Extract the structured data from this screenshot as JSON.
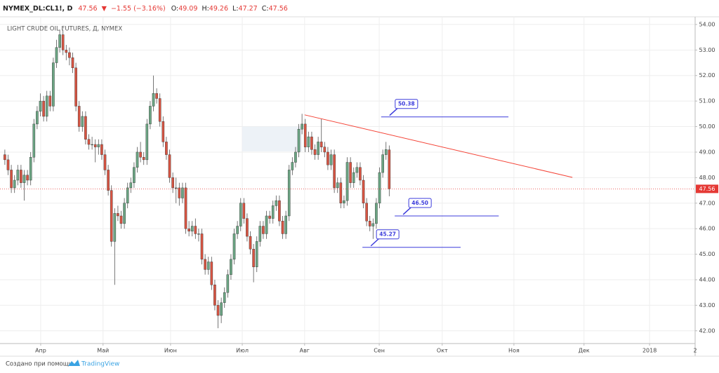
{
  "header": {
    "symbol": "NYMEX_DL:CL1!, D",
    "price": "47.56",
    "arrow": "▼",
    "change": "−1.55 (−3.16%)",
    "o_label": "O:",
    "o": "49.09",
    "h_label": "H:",
    "h": "49.26",
    "l_label": "L:",
    "l": "47.27",
    "c_label": "C:",
    "c": "47.56"
  },
  "chart_data": {
    "type": "candlestick",
    "subtitle": "LIGHT CRUDE OIL FUTURES, Д, NYMEX",
    "up_color": "#6ba583",
    "down_color": "#d75442",
    "candles": {
      "open": [
        48.9,
        48.7,
        48.3,
        47.6,
        47.9,
        48.3,
        47.8,
        48.1,
        47.9,
        48.8,
        50.1,
        50.6,
        51.0,
        50.4,
        51.2,
        50.8,
        52.5,
        53.1,
        53.6,
        53.0,
        52.9,
        52.7,
        52.3,
        50.8,
        50.0,
        50.4,
        49.5,
        49.3,
        49.3,
        49.2,
        49.3,
        48.9,
        48.3,
        47.5,
        45.5,
        46.6,
        46.5,
        46.2,
        47.0,
        47.6,
        47.8,
        48.4,
        49.0,
        48.8,
        48.7,
        50.1,
        50.8,
        51.3,
        51.1,
        50.2,
        49.4,
        48.9,
        48.0,
        47.6,
        47.6,
        47.2,
        47.6,
        46.0,
        45.9,
        46.1,
        45.8,
        45.8,
        44.8,
        44.4,
        44.7,
        43.8,
        43.0,
        42.6,
        43.1,
        43.5,
        44.2,
        44.8,
        45.8,
        46.1,
        47.0,
        46.4,
        45.7,
        45.2,
        44.5,
        45.5,
        46.1,
        45.8,
        46.5,
        46.4,
        46.9,
        47.1,
        46.3,
        45.8,
        46.5,
        48.3,
        48.6,
        49.0,
        49.9,
        50.1,
        49.2,
        49.6,
        49.1,
        48.9,
        49.4,
        49.2,
        49.0,
        48.5,
        48.9,
        47.6,
        47.8,
        47.0,
        47.1,
        48.6,
        47.8,
        48.2,
        48.4,
        47.9,
        47.0,
        46.3,
        46.1,
        46.2,
        47.0,
        48.2,
        48.9,
        49.09
      ],
      "high": [
        49.1,
        48.9,
        48.5,
        48.1,
        48.5,
        48.5,
        48.3,
        48.3,
        49.0,
        50.3,
        50.8,
        51.3,
        51.2,
        51.4,
        51.4,
        52.7,
        53.4,
        53.8,
        53.8,
        53.2,
        53.1,
        52.9,
        52.5,
        51.0,
        50.6,
        50.6,
        49.7,
        49.6,
        49.5,
        49.5,
        49.5,
        49.1,
        48.5,
        47.7,
        46.8,
        46.9,
        46.7,
        47.2,
        47.8,
        48.0,
        48.6,
        49.2,
        49.4,
        49.0,
        50.3,
        51.0,
        52.0,
        51.5,
        51.3,
        50.4,
        49.6,
        49.1,
        48.2,
        48.0,
        47.8,
        47.8,
        47.8,
        46.3,
        46.3,
        46.4,
        46.0,
        46.0,
        45.0,
        44.9,
        44.9,
        44.0,
        43.2,
        43.3,
        43.7,
        44.4,
        45.0,
        46.0,
        46.3,
        47.2,
        47.2,
        46.6,
        45.9,
        45.4,
        45.7,
        46.3,
        46.3,
        46.7,
        46.7,
        47.1,
        47.3,
        47.3,
        46.5,
        46.7,
        48.5,
        48.8,
        49.2,
        50.1,
        50.5,
        50.3,
        49.8,
        49.8,
        49.3,
        49.6,
        50.3,
        49.4,
        49.2,
        49.1,
        49.1,
        48.0,
        48.0,
        47.3,
        48.8,
        48.8,
        48.4,
        48.6,
        48.6,
        48.1,
        47.2,
        46.5,
        46.4,
        47.2,
        48.4,
        49.1,
        49.4,
        49.26
      ],
      "low": [
        48.5,
        48.1,
        47.4,
        47.4,
        47.7,
        47.6,
        47.1,
        47.7,
        47.7,
        48.6,
        49.9,
        50.4,
        50.2,
        50.2,
        50.6,
        50.6,
        52.3,
        52.9,
        52.8,
        52.6,
        52.4,
        52.1,
        50.6,
        49.8,
        49.8,
        49.3,
        49.1,
        49.1,
        48.6,
        48.9,
        48.7,
        48.1,
        47.3,
        45.3,
        43.8,
        46.3,
        46.0,
        46.0,
        46.8,
        47.4,
        47.6,
        48.2,
        48.6,
        48.5,
        48.5,
        49.9,
        50.6,
        50.9,
        50.0,
        49.2,
        48.7,
        47.8,
        47.4,
        47.0,
        46.9,
        47.0,
        45.8,
        45.7,
        45.7,
        45.6,
        45.5,
        44.6,
        44.2,
        44.2,
        43.6,
        42.8,
        42.1,
        42.3,
        42.9,
        43.3,
        44.0,
        44.6,
        45.6,
        45.9,
        46.2,
        45.5,
        45.0,
        43.9,
        44.3,
        45.3,
        45.6,
        45.6,
        46.2,
        46.2,
        46.7,
        46.1,
        45.6,
        45.6,
        46.3,
        48.1,
        48.4,
        48.8,
        49.7,
        49.0,
        49.0,
        48.9,
        48.7,
        48.7,
        49.0,
        48.8,
        48.3,
        48.3,
        47.4,
        47.4,
        46.8,
        46.8,
        46.9,
        47.6,
        47.6,
        48.0,
        47.7,
        46.8,
        46.1,
        45.9,
        45.6,
        46.0,
        46.8,
        48.0,
        48.7,
        47.27
      ],
      "close": [
        48.7,
        48.3,
        47.6,
        47.9,
        48.3,
        47.8,
        48.1,
        47.9,
        48.8,
        50.1,
        50.6,
        51.0,
        50.4,
        51.2,
        50.8,
        52.5,
        53.1,
        53.6,
        53.0,
        52.9,
        52.7,
        52.3,
        50.8,
        50.0,
        50.4,
        49.5,
        49.3,
        49.3,
        49.2,
        49.3,
        48.9,
        48.3,
        47.5,
        45.5,
        46.6,
        46.5,
        46.2,
        47.0,
        47.6,
        47.8,
        48.4,
        49.0,
        48.8,
        48.7,
        50.1,
        50.8,
        51.3,
        51.1,
        50.2,
        49.4,
        48.9,
        48.0,
        47.6,
        47.6,
        47.2,
        47.6,
        46.0,
        45.9,
        46.1,
        45.8,
        45.8,
        44.8,
        44.4,
        44.7,
        43.8,
        43.0,
        42.6,
        43.1,
        43.5,
        44.2,
        44.8,
        45.8,
        46.1,
        47.0,
        46.4,
        45.7,
        45.2,
        44.5,
        45.5,
        46.1,
        45.8,
        46.5,
        46.4,
        46.9,
        47.1,
        46.3,
        45.8,
        46.5,
        48.3,
        48.6,
        49.0,
        49.9,
        50.1,
        49.2,
        49.6,
        49.1,
        48.9,
        49.4,
        49.2,
        49.0,
        48.5,
        48.9,
        47.6,
        47.8,
        47.0,
        47.1,
        48.6,
        47.8,
        48.2,
        48.4,
        47.9,
        47.0,
        46.3,
        46.1,
        46.2,
        47.0,
        48.2,
        48.9,
        49.1,
        47.56
      ]
    },
    "last_price": 47.56,
    "last_price_color": "#e53935",
    "xlim": [
      -1.5,
      213.7
    ],
    "xticks": [
      {
        "value": 11.1,
        "label": "Апр"
      },
      {
        "value": 30.4,
        "label": "Май"
      },
      {
        "value": 51.3,
        "label": "Июн"
      },
      {
        "value": 73.5,
        "label": "Июл"
      },
      {
        "value": 92.8,
        "label": "Авг"
      },
      {
        "value": 115.9,
        "label": "Сен"
      },
      {
        "value": 135.4,
        "label": "Окт"
      },
      {
        "value": 157.6,
        "label": "Ноя"
      },
      {
        "value": 179.3,
        "label": "Дек"
      },
      {
        "value": 199.6,
        "label": "2018"
      },
      {
        "value": 213.7,
        "label": "2"
      }
    ],
    "ylim": [
      41.5,
      54.3
    ],
    "yticks": [
      {
        "value": 42,
        "label": "42.00"
      },
      {
        "value": 43,
        "label": "43.00"
      },
      {
        "value": 44,
        "label": "44.00"
      },
      {
        "value": 45,
        "label": "45.00"
      },
      {
        "value": 46,
        "label": "46.00"
      },
      {
        "value": 47,
        "label": "47.00"
      },
      {
        "value": 48,
        "label": "48.00"
      },
      {
        "value": 49,
        "label": "49.00"
      },
      {
        "value": 50,
        "label": "50.00"
      },
      {
        "value": 51,
        "label": "51.00"
      },
      {
        "value": 52,
        "label": "52.00"
      },
      {
        "value": 53,
        "label": "53.00"
      },
      {
        "value": 54,
        "label": "54.00"
      }
    ],
    "grid": true,
    "trend_line": {
      "x": [
        92.8,
        175.7
      ],
      "y": [
        50.46,
        48.01
      ],
      "color": "#f44336"
    },
    "zone": {
      "x": [
        73.5,
        92.0
      ],
      "y": [
        49.03,
        50.0
      ]
    },
    "hlines": [
      {
        "value": 50.38,
        "x": [
          116.5,
          155.9
        ],
        "label": "50.38"
      },
      {
        "value": 46.5,
        "x": [
          120.7,
          152.9
        ],
        "label": "46.50"
      },
      {
        "value": 45.27,
        "x": [
          110.7,
          141.1
        ],
        "label": "45.27"
      }
    ],
    "hline_color": "#3c3cdc"
  },
  "footer": {
    "made_with": "Создано при помощи",
    "brand": "TradingView"
  }
}
